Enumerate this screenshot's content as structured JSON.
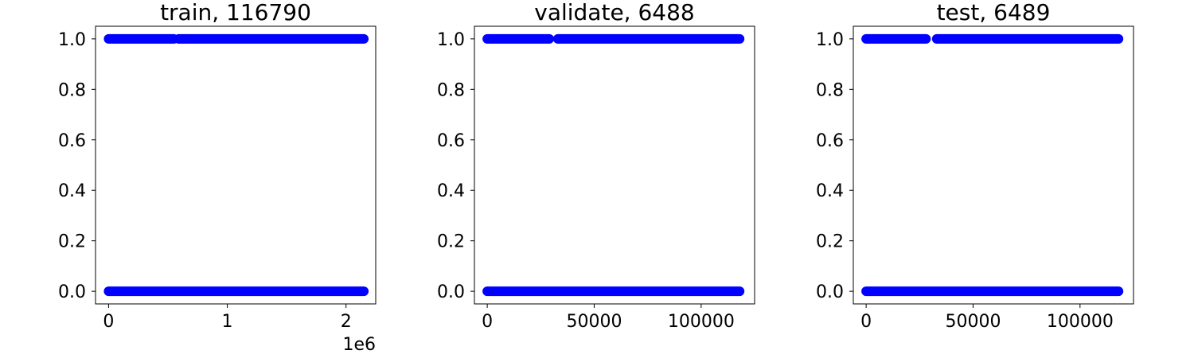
{
  "chart_data": [
    {
      "type": "scatter",
      "title": "train, 116790",
      "xlabel": "",
      "ylabel": "",
      "x_offset_label": "1e6",
      "xlim": [
        -0.11,
        2.25
      ],
      "ylim": [
        -0.05,
        1.05
      ],
      "x_ticks": [
        0,
        1,
        2
      ],
      "x_tick_labels": [
        "0",
        "1",
        "2"
      ],
      "y_ticks": [
        0.0,
        0.2,
        0.4,
        0.6,
        0.8,
        1.0
      ],
      "y_tick_labels": [
        "0.0",
        "0.2",
        "0.4",
        "0.6",
        "0.8",
        "1.0"
      ],
      "series": [
        {
          "color": "#0000ff",
          "points": [
            {
              "x_start": 0.0,
              "x_end": 0.55,
              "y": 1.0
            },
            {
              "x_start": 0.59,
              "x_end": 2.15,
              "y": 1.0
            },
            {
              "x_start": 0.0,
              "x_end": 2.15,
              "y": 0.0
            }
          ]
        }
      ]
    },
    {
      "type": "scatter",
      "title": "validate, 6488",
      "xlabel": "",
      "ylabel": "",
      "x_offset_label": "",
      "xlim": [
        -6000,
        125000
      ],
      "ylim": [
        -0.05,
        1.05
      ],
      "x_ticks": [
        0,
        50000,
        100000
      ],
      "x_tick_labels": [
        "0",
        "50000",
        "100000"
      ],
      "y_ticks": [
        0.0,
        0.2,
        0.4,
        0.6,
        0.8,
        1.0
      ],
      "y_tick_labels": [
        "0.0",
        "0.2",
        "0.4",
        "0.6",
        "0.8",
        "1.0"
      ],
      "series": [
        {
          "color": "#0000ff",
          "points": [
            {
              "x_start": 0,
              "x_end": 29000,
              "y": 1.0
            },
            {
              "x_start": 33000,
              "x_end": 118000,
              "y": 1.0
            },
            {
              "x_start": 0,
              "x_end": 118000,
              "y": 0.0
            }
          ]
        }
      ]
    },
    {
      "type": "scatter",
      "title": "test, 6489",
      "xlabel": "",
      "ylabel": "",
      "x_offset_label": "",
      "xlim": [
        -6000,
        125000
      ],
      "ylim": [
        -0.05,
        1.05
      ],
      "x_ticks": [
        0,
        50000,
        100000
      ],
      "x_tick_labels": [
        "0",
        "50000",
        "100000"
      ],
      "y_ticks": [
        0.0,
        0.2,
        0.4,
        0.6,
        0.8,
        1.0
      ],
      "y_tick_labels": [
        "0.0",
        "0.2",
        "0.4",
        "0.6",
        "0.8",
        "1.0"
      ],
      "series": [
        {
          "color": "#0000ff",
          "points": [
            {
              "x_start": 0,
              "x_end": 28000,
              "y": 1.0
            },
            {
              "x_start": 33000,
              "x_end": 118000,
              "y": 1.0
            },
            {
              "x_start": 0,
              "x_end": 118000,
              "y": 0.0
            }
          ]
        }
      ]
    }
  ]
}
